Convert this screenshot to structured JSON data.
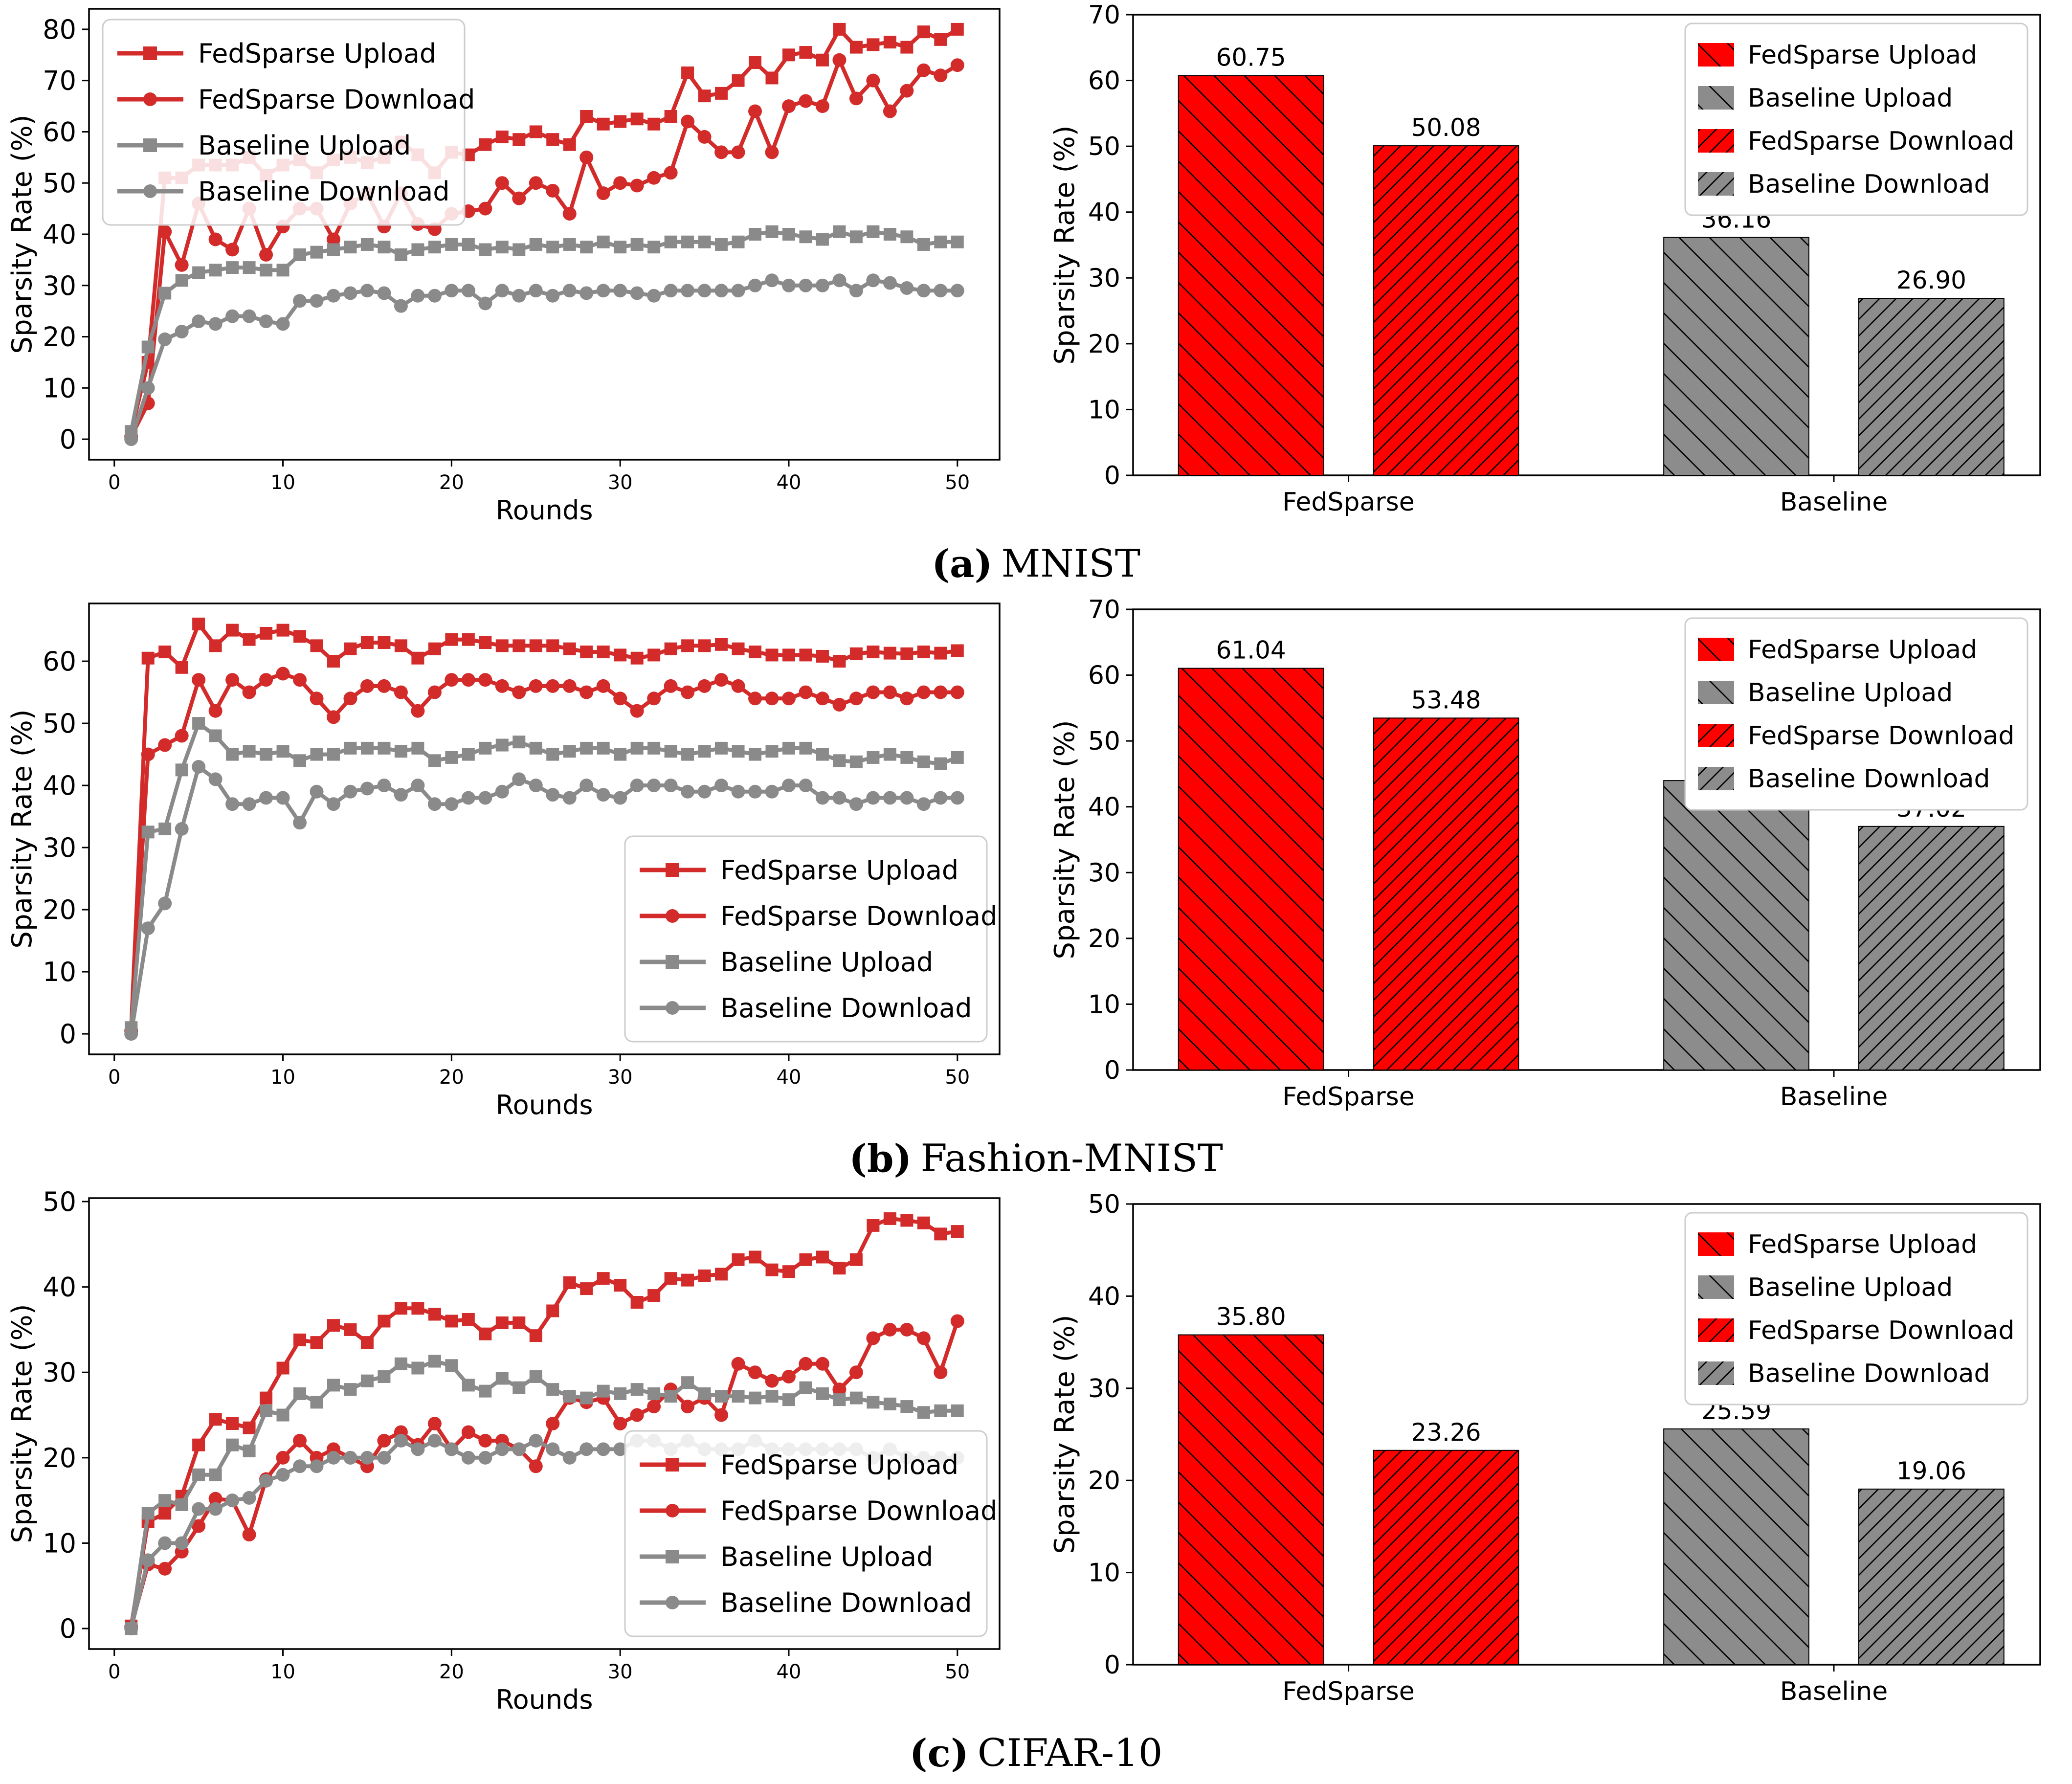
{
  "figure": {
    "ylabel": "Sparsity Rate (%)",
    "xlabel": "Rounds",
    "captions": [
      {
        "label": "(a)",
        "title": "MNIST"
      },
      {
        "label": "(b)",
        "title": "Fashion-MNIST"
      },
      {
        "label": "(c)",
        "title": "CIFAR-10"
      }
    ],
    "colors": {
      "line_red": "#d32a2a",
      "line_gray": "#8a8a8a",
      "bar_red": "#ff0000",
      "bar_gray": "#8c8c8c",
      "legend_border": "#cccccc",
      "axis": "#000000"
    },
    "rounds": [
      1,
      2,
      3,
      4,
      5,
      6,
      7,
      8,
      9,
      10,
      11,
      12,
      13,
      14,
      15,
      16,
      17,
      18,
      19,
      20,
      21,
      22,
      23,
      24,
      25,
      26,
      27,
      28,
      29,
      30,
      31,
      32,
      33,
      34,
      35,
      36,
      37,
      38,
      39,
      40,
      41,
      42,
      43,
      44,
      45,
      46,
      47,
      48,
      49,
      50
    ]
  },
  "chart_data": [
    {
      "type": "line",
      "dataset": "MNIST",
      "xlabel": "Rounds",
      "ylabel": "Sparsity Rate (%)",
      "xlim": [
        -1.5,
        52.5
      ],
      "ylim": [
        -4,
        84
      ],
      "xticks": [
        0,
        10,
        20,
        30,
        40,
        50
      ],
      "yticks": [
        0,
        10,
        20,
        30,
        40,
        50,
        60,
        70,
        80
      ],
      "legend_pos": "upper-left",
      "grid": false,
      "series": [
        {
          "name": "FedSparse Upload",
          "color": "#d32a2a",
          "marker": "square",
          "values": [
            1.5,
            15,
            51,
            51,
            53.5,
            53.5,
            53.5,
            55,
            51.5,
            53.5,
            54.5,
            52,
            54.5,
            55,
            54,
            55,
            58,
            55.5,
            52,
            56,
            55.5,
            57.5,
            59,
            58.5,
            60,
            58.5,
            57.5,
            63,
            61.5,
            62,
            62.5,
            61.5,
            63,
            71.5,
            67,
            67.5,
            70,
            73.5,
            70.5,
            75,
            75.5,
            74,
            80,
            76.5,
            77,
            77.5,
            76.5,
            79.5,
            78,
            80
          ]
        },
        {
          "name": "FedSparse Download",
          "color": "#d32a2a",
          "marker": "circle",
          "values": [
            0.5,
            7,
            40.5,
            34,
            46,
            39,
            37,
            45,
            36,
            41.5,
            45,
            45,
            39,
            46,
            48,
            41.5,
            48,
            42,
            41,
            44,
            44.5,
            45,
            50,
            47,
            50,
            48.5,
            44,
            55,
            48,
            50,
            49.5,
            51,
            52,
            62,
            59,
            56,
            56,
            64,
            56,
            65,
            66,
            65,
            74,
            66.5,
            70,
            64,
            68,
            72,
            71,
            73
          ]
        },
        {
          "name": "Baseline Upload",
          "color": "#8a8a8a",
          "marker": "square",
          "values": [
            1.5,
            18,
            28.5,
            31,
            32.5,
            33,
            33.5,
            33.5,
            33,
            33,
            36,
            36.5,
            37,
            37.5,
            38,
            37.5,
            36,
            37,
            37.5,
            38,
            38,
            37,
            37.5,
            37,
            38,
            37.5,
            38,
            37.5,
            38.5,
            37.5,
            38,
            37.5,
            38.5,
            38.5,
            38.5,
            38,
            38.5,
            40,
            40.5,
            40,
            39.5,
            39,
            40.5,
            39.5,
            40.5,
            40,
            39.5,
            38,
            38.5,
            38.5
          ]
        },
        {
          "name": "Baseline Download",
          "color": "#8a8a8a",
          "marker": "circle",
          "values": [
            0,
            10,
            19.5,
            21,
            23,
            22.5,
            24,
            24,
            23,
            22.5,
            27,
            27,
            28,
            28.5,
            29,
            28.5,
            26,
            28,
            28,
            29,
            29,
            26.5,
            29,
            28,
            29,
            28,
            29,
            28.5,
            29,
            29,
            28.5,
            28,
            29,
            29,
            29,
            29,
            29,
            30,
            31,
            30,
            30,
            30,
            31,
            29,
            31,
            30.5,
            29.5,
            29,
            29,
            29
          ]
        }
      ]
    },
    {
      "type": "bar",
      "dataset": "MNIST",
      "ylabel": "Sparsity Rate (%)",
      "ylim": [
        0,
        70
      ],
      "yticks": [
        0,
        10,
        20,
        30,
        40,
        50,
        60,
        70
      ],
      "groups": [
        "FedSparse",
        "Baseline"
      ],
      "legend_order": [
        0,
        2,
        1,
        3
      ],
      "bars": [
        {
          "name": "FedSparse Upload",
          "group": "FedSparse",
          "value": 60.75,
          "label": "60.75",
          "color": "#ff0000",
          "hatch": "back"
        },
        {
          "name": "FedSparse Download",
          "group": "FedSparse",
          "value": 50.08,
          "label": "50.08",
          "color": "#ff0000",
          "hatch": "fwd"
        },
        {
          "name": "Baseline Upload",
          "group": "Baseline",
          "value": 36.16,
          "label": "36.16",
          "color": "#8c8c8c",
          "hatch": "back"
        },
        {
          "name": "Baseline Download",
          "group": "Baseline",
          "value": 26.9,
          "label": "26.90",
          "color": "#8c8c8c",
          "hatch": "fwd"
        }
      ]
    },
    {
      "type": "line",
      "dataset": "Fashion-MNIST",
      "xlabel": "Rounds",
      "ylabel": "Sparsity Rate (%)",
      "xlim": [
        -1.5,
        52.5
      ],
      "ylim": [
        -3.3,
        69.3
      ],
      "xticks": [
        0,
        10,
        20,
        30,
        40,
        50
      ],
      "yticks": [
        0,
        10,
        20,
        30,
        40,
        50,
        60
      ],
      "legend_pos": "lower-right",
      "grid": false,
      "series": [
        {
          "name": "FedSparse Upload",
          "color": "#d32a2a",
          "marker": "square",
          "values": [
            1,
            60.5,
            61.5,
            59,
            66,
            62.5,
            65,
            63.5,
            64.5,
            65,
            64,
            62.5,
            60,
            62,
            63,
            63,
            62.5,
            60.5,
            62,
            63.5,
            63.5,
            63,
            62.5,
            62.5,
            62.5,
            62.5,
            62,
            61.5,
            61.5,
            61,
            60.5,
            61,
            62,
            62.5,
            62.5,
            62.7,
            62,
            61.5,
            61,
            61,
            61,
            60.8,
            60,
            61.2,
            61.5,
            61.3,
            61.2,
            61.5,
            61.3,
            61.7
          ]
        },
        {
          "name": "FedSparse Download",
          "color": "#d32a2a",
          "marker": "circle",
          "values": [
            0.5,
            45,
            46.5,
            48,
            57,
            52,
            57,
            55,
            57,
            58,
            57,
            54,
            51,
            54,
            56,
            56,
            55,
            52,
            55,
            57,
            57,
            57,
            56,
            55,
            56,
            56,
            56,
            55,
            56,
            54,
            52,
            54,
            56,
            55,
            56,
            57,
            56,
            54,
            54,
            54,
            55,
            54,
            53,
            54,
            55,
            55,
            54,
            55,
            55,
            55
          ]
        },
        {
          "name": "Baseline Upload",
          "color": "#8a8a8a",
          "marker": "square",
          "values": [
            1,
            32.5,
            33,
            42.5,
            50,
            48,
            45,
            45.5,
            45,
            45.5,
            44,
            45,
            45,
            46,
            46,
            46,
            45.5,
            46,
            44,
            44.5,
            45,
            46,
            46.5,
            47,
            46,
            45,
            45.5,
            46,
            46,
            45,
            46,
            46,
            45.5,
            45,
            45.5,
            46,
            45.5,
            45,
            45.5,
            46,
            46,
            45,
            44,
            43.8,
            44.5,
            45,
            44.5,
            43.8,
            43.5,
            44.5
          ]
        },
        {
          "name": "Baseline Download",
          "color": "#8a8a8a",
          "marker": "circle",
          "values": [
            0,
            17,
            21,
            33,
            43,
            41,
            37,
            37,
            38,
            38,
            34,
            39,
            37,
            39,
            39.5,
            40,
            38.5,
            40,
            37,
            37,
            38,
            38,
            39,
            41,
            40,
            38.5,
            38,
            40,
            38.5,
            38,
            40,
            40,
            40,
            39,
            39,
            40,
            39,
            39,
            39,
            40,
            40,
            38,
            38,
            37,
            38,
            38,
            38,
            37,
            38,
            38
          ]
        }
      ]
    },
    {
      "type": "bar",
      "dataset": "Fashion-MNIST",
      "ylabel": "Sparsity Rate (%)",
      "ylim": [
        0,
        70
      ],
      "yticks": [
        0,
        10,
        20,
        30,
        40,
        50,
        60,
        70
      ],
      "groups": [
        "FedSparse",
        "Baseline"
      ],
      "legend_order": [
        0,
        2,
        1,
        3
      ],
      "bars": [
        {
          "name": "FedSparse Upload",
          "group": "FedSparse",
          "value": 61.04,
          "label": "61.04",
          "color": "#ff0000",
          "hatch": "back"
        },
        {
          "name": "FedSparse Download",
          "group": "FedSparse",
          "value": 53.48,
          "label": "53.48",
          "color": "#ff0000",
          "hatch": "fwd"
        },
        {
          "name": "Baseline Upload",
          "group": "Baseline",
          "value": 43.98,
          "label": "43.98",
          "color": "#8c8c8c",
          "hatch": "back"
        },
        {
          "name": "Baseline Download",
          "group": "Baseline",
          "value": 37.02,
          "label": "37.02",
          "color": "#8c8c8c",
          "hatch": "fwd"
        }
      ]
    },
    {
      "type": "line",
      "dataset": "CIFAR-10",
      "xlabel": "Rounds",
      "ylabel": "Sparsity Rate (%)",
      "xlim": [
        -1.5,
        52.5
      ],
      "ylim": [
        -2.4,
        50.4
      ],
      "xticks": [
        0,
        10,
        20,
        30,
        40,
        50
      ],
      "yticks": [
        0,
        10,
        20,
        30,
        40,
        50
      ],
      "legend_pos": "lower-right",
      "grid": false,
      "series": [
        {
          "name": "FedSparse Upload",
          "color": "#d32a2a",
          "marker": "square",
          "values": [
            0.3,
            12.5,
            13.5,
            15.5,
            21.5,
            24.5,
            24,
            23.5,
            27,
            30.5,
            33.8,
            33.5,
            35.5,
            35,
            33.5,
            36,
            37.5,
            37.5,
            36.8,
            36,
            36.2,
            34.5,
            35.8,
            35.8,
            34.3,
            37.2,
            40.5,
            39.8,
            41,
            40.2,
            38.2,
            39,
            41,
            40.8,
            41.3,
            41.5,
            43.2,
            43.5,
            42,
            41.8,
            43.2,
            43.5,
            42.2,
            43.2,
            47.2,
            48,
            47.8,
            47.5,
            46.2,
            46.5
          ]
        },
        {
          "name": "FedSparse Download",
          "color": "#d32a2a",
          "marker": "circle",
          "values": [
            0.2,
            7.5,
            7,
            9,
            12,
            15.2,
            15,
            11,
            17.5,
            20,
            22,
            20,
            21,
            20,
            19,
            22,
            23,
            21.5,
            24,
            21,
            23,
            22,
            22,
            21,
            19,
            24,
            27,
            26.5,
            27,
            24,
            25,
            26,
            28,
            26,
            27,
            25,
            31,
            30,
            29,
            29.5,
            31,
            31,
            28,
            30,
            34,
            35,
            35,
            34,
            30,
            36
          ]
        },
        {
          "name": "Baseline Upload",
          "color": "#8a8a8a",
          "marker": "square",
          "values": [
            0,
            13.5,
            15,
            14.5,
            18,
            18,
            21.5,
            20.8,
            25.5,
            25,
            27.5,
            26.5,
            28.5,
            28,
            29,
            29.5,
            31,
            30.5,
            31.3,
            30.8,
            28.5,
            27.8,
            29.3,
            28.2,
            29.5,
            28,
            27.2,
            27,
            27.8,
            27.5,
            28,
            27.5,
            27.2,
            28.8,
            27.5,
            27.2,
            27.2,
            27,
            27.2,
            26.8,
            28.2,
            27.5,
            26.8,
            27,
            26.5,
            26.3,
            26,
            25.3,
            25.5,
            25.5
          ]
        },
        {
          "name": "Baseline Download",
          "color": "#8a8a8a",
          "marker": "circle",
          "values": [
            0,
            8,
            10,
            10,
            14,
            14,
            15,
            15.3,
            17.3,
            18,
            19,
            19,
            20,
            20,
            20,
            20,
            22,
            21,
            22,
            21,
            20,
            20,
            21,
            21,
            22,
            21,
            20,
            21,
            21,
            21,
            22,
            22,
            21,
            22,
            21,
            21,
            21,
            22,
            21,
            21,
            21,
            21,
            21,
            21,
            20,
            21,
            20,
            20,
            20,
            20
          ]
        }
      ]
    },
    {
      "type": "bar",
      "dataset": "CIFAR-10",
      "ylabel": "Sparsity Rate (%)",
      "ylim": [
        0,
        50
      ],
      "yticks": [
        0,
        10,
        20,
        30,
        40,
        50
      ],
      "groups": [
        "FedSparse",
        "Baseline"
      ],
      "legend_order": [
        0,
        2,
        1,
        3
      ],
      "bars": [
        {
          "name": "FedSparse Upload",
          "group": "FedSparse",
          "value": 35.8,
          "label": "35.80",
          "color": "#ff0000",
          "hatch": "back"
        },
        {
          "name": "FedSparse Download",
          "group": "FedSparse",
          "value": 23.26,
          "label": "23.26",
          "color": "#ff0000",
          "hatch": "fwd"
        },
        {
          "name": "Baseline Upload",
          "group": "Baseline",
          "value": 25.59,
          "label": "25.59",
          "color": "#8c8c8c",
          "hatch": "back"
        },
        {
          "name": "Baseline Download",
          "group": "Baseline",
          "value": 19.06,
          "label": "19.06",
          "color": "#8c8c8c",
          "hatch": "fwd"
        }
      ]
    }
  ]
}
